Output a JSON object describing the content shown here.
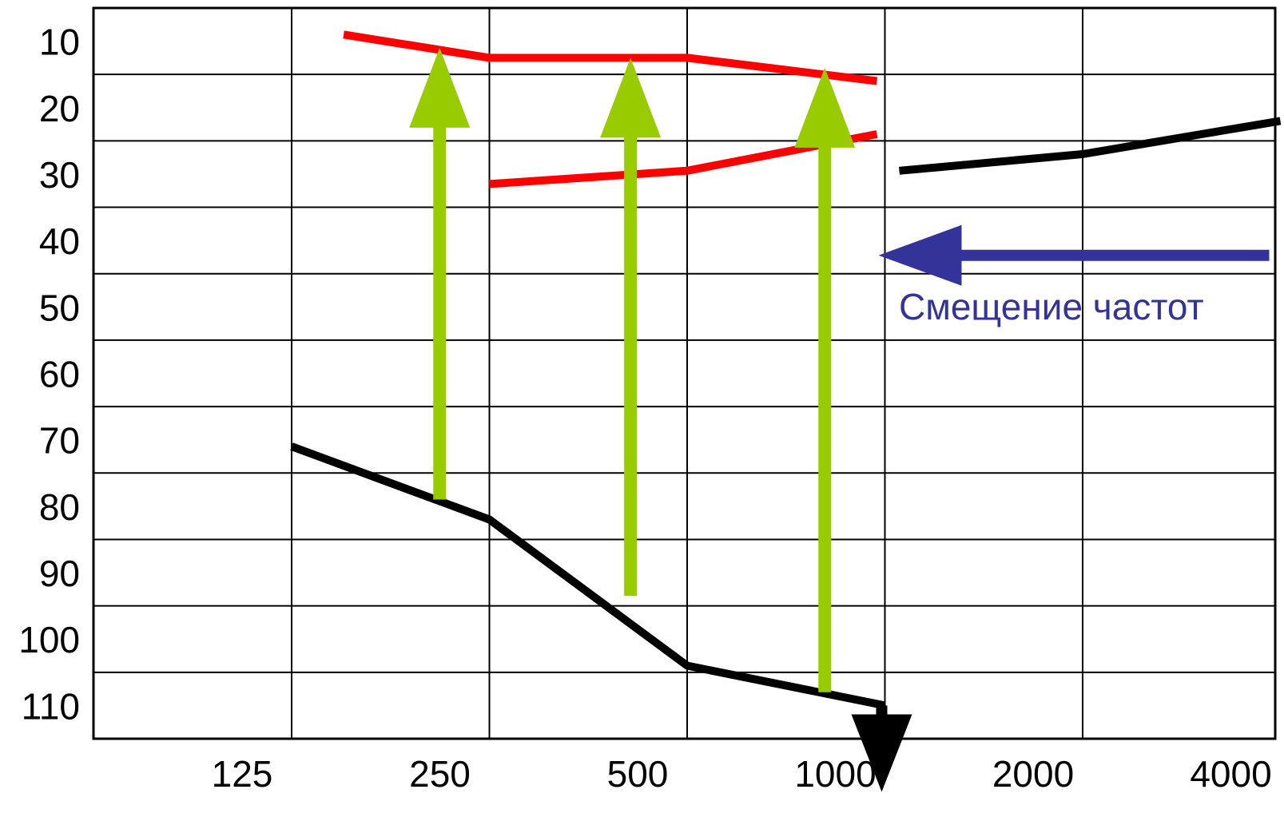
{
  "chart_data": {
    "type": "line",
    "x_ticks": [
      "125",
      "250",
      "500",
      "1000",
      "2000",
      "4000"
    ],
    "y_ticks": [
      "10",
      "20",
      "30",
      "40",
      "50",
      "60",
      "70",
      "80",
      "90",
      "100",
      "110"
    ],
    "y_range": [
      5,
      115
    ],
    "y_inverted": true,
    "x_scale": "log2",
    "grid": true,
    "series": [
      {
        "color": "#000000",
        "points": [
          [
            125,
            71
          ],
          [
            250,
            82
          ],
          [
            500,
            104
          ],
          [
            1000,
            110
          ]
        ]
      },
      {
        "color": "#000000",
        "points": [
          [
            1000,
            29.5
          ],
          [
            2000,
            27
          ],
          [
            4000,
            22
          ]
        ]
      },
      {
        "color": "#ff0000",
        "points": [
          [
            150,
            9
          ],
          [
            250,
            12.5
          ],
          [
            500,
            12.5
          ],
          [
            1000,
            16
          ]
        ]
      },
      {
        "color": "#ff0000",
        "points": [
          [
            250,
            31.5
          ],
          [
            500,
            29.5
          ],
          [
            1000,
            24
          ]
        ]
      }
    ],
    "annotations": {
      "up_arrows": {
        "color": "#99cc00",
        "items": [
          {
            "x": 210,
            "from": 79,
            "to": 11
          },
          {
            "x": 410,
            "from": 93.5,
            "to": 12.5
          },
          {
            "x": 810,
            "from": 108,
            "to": 14
          }
        ]
      },
      "down_arrow": {
        "color": "#000000",
        "x": 1000,
        "from": 110,
        "to": 123
      },
      "shift_arrow": {
        "color": "#333399",
        "x_from": 4000,
        "x_to": 1000,
        "y": 42
      },
      "shift_label": "Смещение частот",
      "shift_label_color": "#333399"
    }
  }
}
